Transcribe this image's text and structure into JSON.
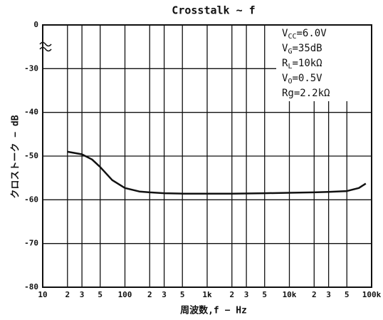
{
  "chart_data": {
    "type": "line",
    "title": "Crosstalk ~ f",
    "xlabel": "周波数,f − Hz",
    "ylabel": "クロストーク − dB",
    "xscale": "log",
    "xlim": [
      10,
      100000
    ],
    "xticks": [
      10,
      {
        "value": 20,
        "label": "2"
      },
      {
        "value": 30,
        "label": "3"
      },
      {
        "value": 50,
        "label": "5"
      },
      100,
      {
        "value": 200,
        "label": "2"
      },
      {
        "value": 300,
        "label": "3"
      },
      {
        "value": 500,
        "label": "5"
      },
      {
        "value": 1000,
        "label": "1k"
      },
      {
        "value": 2000,
        "label": "2"
      },
      {
        "value": 3000,
        "label": "3"
      },
      {
        "value": 5000,
        "label": "5"
      },
      {
        "value": 10000,
        "label": "10k"
      },
      {
        "value": 20000,
        "label": "2"
      },
      {
        "value": 30000,
        "label": "3"
      },
      {
        "value": 50000,
        "label": "5"
      },
      {
        "value": 100000,
        "label": "100k"
      }
    ],
    "ylim": [
      -80,
      0
    ],
    "yticks": [
      0,
      -30,
      -40,
      -50,
      -60,
      -70,
      -80
    ],
    "axis_break": true,
    "grid": true,
    "series": [
      {
        "color": "#111111",
        "x": [
          20,
          30,
          40,
          50,
          70,
          100,
          150,
          200,
          300,
          500,
          1000,
          2000,
          5000,
          10000,
          20000,
          30000,
          50000,
          70000,
          85000
        ],
        "values": [
          -49,
          -49.6,
          -50.8,
          -52.5,
          -55.5,
          -57.3,
          -58.1,
          -58.3,
          -58.5,
          -58.6,
          -58.6,
          -58.6,
          -58.5,
          -58.4,
          -58.3,
          -58.2,
          -58,
          -57.3,
          -56.3
        ]
      }
    ],
    "annotations": [
      {
        "symbol": "V",
        "subscript": "CC",
        "value": "=6.0V"
      },
      {
        "symbol": "V",
        "subscript": "G",
        "value": "=35dB"
      },
      {
        "symbol": "R",
        "subscript": "L",
        "value": "=10kΩ"
      },
      {
        "symbol": "V",
        "subscript": "O",
        "value": "=0.5V"
      },
      {
        "symbol": "Rg",
        "value": "=2.2kΩ"
      }
    ]
  }
}
